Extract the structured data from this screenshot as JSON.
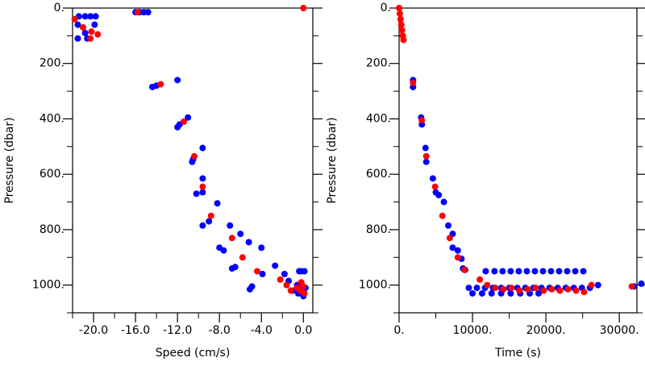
{
  "chart_data": [
    {
      "type": "scatter",
      "xlabel": "Speed (cm/s)",
      "ylabel": "Pressure (dbar)",
      "xlim": [
        -22.0,
        0.9
      ],
      "ylim": [
        1100,
        0
      ],
      "xticks": [
        {
          "value": -20,
          "label": "-20.0"
        },
        {
          "value": -16,
          "label": "-16.0"
        },
        {
          "value": -12,
          "label": "-12.0"
        },
        {
          "value": -8,
          "label": "-8.0"
        },
        {
          "value": -4,
          "label": "-4.0"
        },
        {
          "value": 0,
          "label": "0.0"
        }
      ],
      "xminorticks": [
        -22,
        -18,
        -14,
        -10,
        -6,
        -2
      ],
      "yticks": [
        {
          "value": 0,
          "label": "0."
        },
        {
          "value": 200,
          "label": "200."
        },
        {
          "value": 400,
          "label": "400."
        },
        {
          "value": 600,
          "label": "600."
        },
        {
          "value": 800,
          "label": "800."
        },
        {
          "value": 1000,
          "label": "1000."
        }
      ],
      "yminorticks": [
        100,
        300,
        500,
        700,
        900,
        1100
      ],
      "series": [
        {
          "color": "#0000ff",
          "x": [
            -21.4,
            -20.8,
            -20.3,
            -19.8,
            -21.5,
            -20.8,
            -21.5,
            -20.6,
            -19.9,
            -16.0,
            -15.6,
            -15.2,
            -14.8,
            -14.4,
            -14.0,
            -12.0,
            -12.0,
            -11.8,
            -11.0,
            -10.6,
            -10.5,
            -9.6,
            -10.2,
            -9.6,
            -9.6,
            -8.2,
            -9.6,
            -9.0,
            -8.0,
            -7.6,
            -7.0,
            -6.8,
            -6.5,
            -6.0,
            -5.2,
            -4.9,
            -5.1,
            -3.9,
            -4.0,
            -2.7,
            -1.8,
            -1.4,
            -0.4,
            -0.2,
            0.1,
            -0.6,
            -0.3,
            0.0,
            0.2,
            -0.5,
            -0.1,
            0.0,
            -1.0
          ],
          "values": [
            30,
            30,
            30,
            30,
            60,
            90,
            110,
            110,
            60,
            15,
            15,
            15,
            15,
            285,
            280,
            260,
            430,
            420,
            395,
            555,
            545,
            505,
            670,
            615,
            665,
            705,
            785,
            770,
            865,
            875,
            785,
            940,
            935,
            815,
            845,
            1005,
            1015,
            960,
            865,
            930,
            960,
            985,
            950,
            950,
            950,
            1000,
            1010,
            1010,
            1010,
            1030,
            1030,
            1040,
            1020
          ]
        },
        {
          "color": "#ff0000",
          "x": [
            -21.8,
            -21.0,
            -20.2,
            -19.6,
            -20.3,
            -15.8,
            0.0,
            -13.6,
            -11.4,
            -10.4,
            -9.6,
            -8.8,
            -6.8,
            -5.8,
            -4.4,
            -2.2,
            -1.6,
            -1.2,
            -0.6,
            -0.3,
            0.0,
            -0.2,
            0.1
          ],
          "values": [
            40,
            70,
            85,
            95,
            110,
            15,
            0,
            275,
            410,
            535,
            645,
            750,
            830,
            900,
            950,
            980,
            1000,
            1020,
            1010,
            1020,
            1005,
            990,
            1030
          ]
        }
      ]
    },
    {
      "type": "scatter",
      "xlabel": "Time (s)",
      "ylabel": "Pressure (dbar)",
      "xlim": [
        0,
        32400
      ],
      "ylim": [
        1100,
        0
      ],
      "xticks": [
        {
          "value": 0,
          "label": "0."
        },
        {
          "value": 10000,
          "label": "10000."
        },
        {
          "value": 20000,
          "label": "20000."
        },
        {
          "value": 30000,
          "label": "30000."
        }
      ],
      "xminorticks": [
        5000,
        15000,
        25000
      ],
      "yticks": [
        {
          "value": 0,
          "label": "0."
        },
        {
          "value": 200,
          "label": "200."
        },
        {
          "value": 400,
          "label": "400."
        },
        {
          "value": 600,
          "label": "600."
        },
        {
          "value": 800,
          "label": "800."
        },
        {
          "value": 1000,
          "label": "1000."
        }
      ],
      "yminorticks": [
        100,
        300,
        500,
        700,
        900,
        1100
      ],
      "series": [
        {
          "color": "#0000ff",
          "x": [
            1900,
            1900,
            3000,
            3100,
            3600,
            3700,
            4600,
            5400,
            5000,
            6100,
            6700,
            7300,
            7300,
            8000,
            8500,
            8700,
            9000,
            11800,
            13000,
            14100,
            15200,
            16300,
            17400,
            18500,
            19600,
            20700,
            21800,
            22900,
            24000,
            25100,
            9500,
            10600,
            11700,
            12800,
            13900,
            15000,
            16100,
            17200,
            18300,
            19400,
            20500,
            21600,
            22700,
            23800,
            24900,
            26000,
            10000,
            11300,
            12600,
            13900,
            15200,
            16500,
            17800,
            19000,
            27100,
            32000,
            33000
          ],
          "values": [
            260,
            285,
            395,
            420,
            505,
            555,
            615,
            675,
            665,
            700,
            785,
            815,
            865,
            875,
            905,
            940,
            945,
            950,
            950,
            950,
            950,
            950,
            950,
            950,
            950,
            950,
            950,
            950,
            950,
            950,
            1010,
            1010,
            1010,
            1010,
            1010,
            1010,
            1010,
            1010,
            1010,
            1010,
            1010,
            1010,
            1010,
            1010,
            1010,
            1010,
            1030,
            1030,
            1030,
            1030,
            1030,
            1030,
            1030,
            1030,
            1000,
            1005,
            995
          ]
        },
        {
          "color": "#ff0000",
          "x": [
            0,
            100,
            200,
            300,
            400,
            500,
            600,
            1900,
            3100,
            3700,
            4900,
            5900,
            6900,
            8000,
            8900,
            11000,
            12000,
            13100,
            14200,
            15300,
            16400,
            17500,
            18600,
            19700,
            20800,
            21900,
            23000,
            24100,
            25200,
            26200,
            31700
          ],
          "values": [
            0,
            20,
            40,
            60,
            80,
            100,
            115,
            270,
            405,
            535,
            645,
            750,
            830,
            900,
            945,
            980,
            1000,
            1010,
            1015,
            1010,
            1020,
            1015,
            1010,
            1020,
            1015,
            1020,
            1015,
            1020,
            1025,
            1000,
            1005
          ]
        }
      ]
    }
  ]
}
